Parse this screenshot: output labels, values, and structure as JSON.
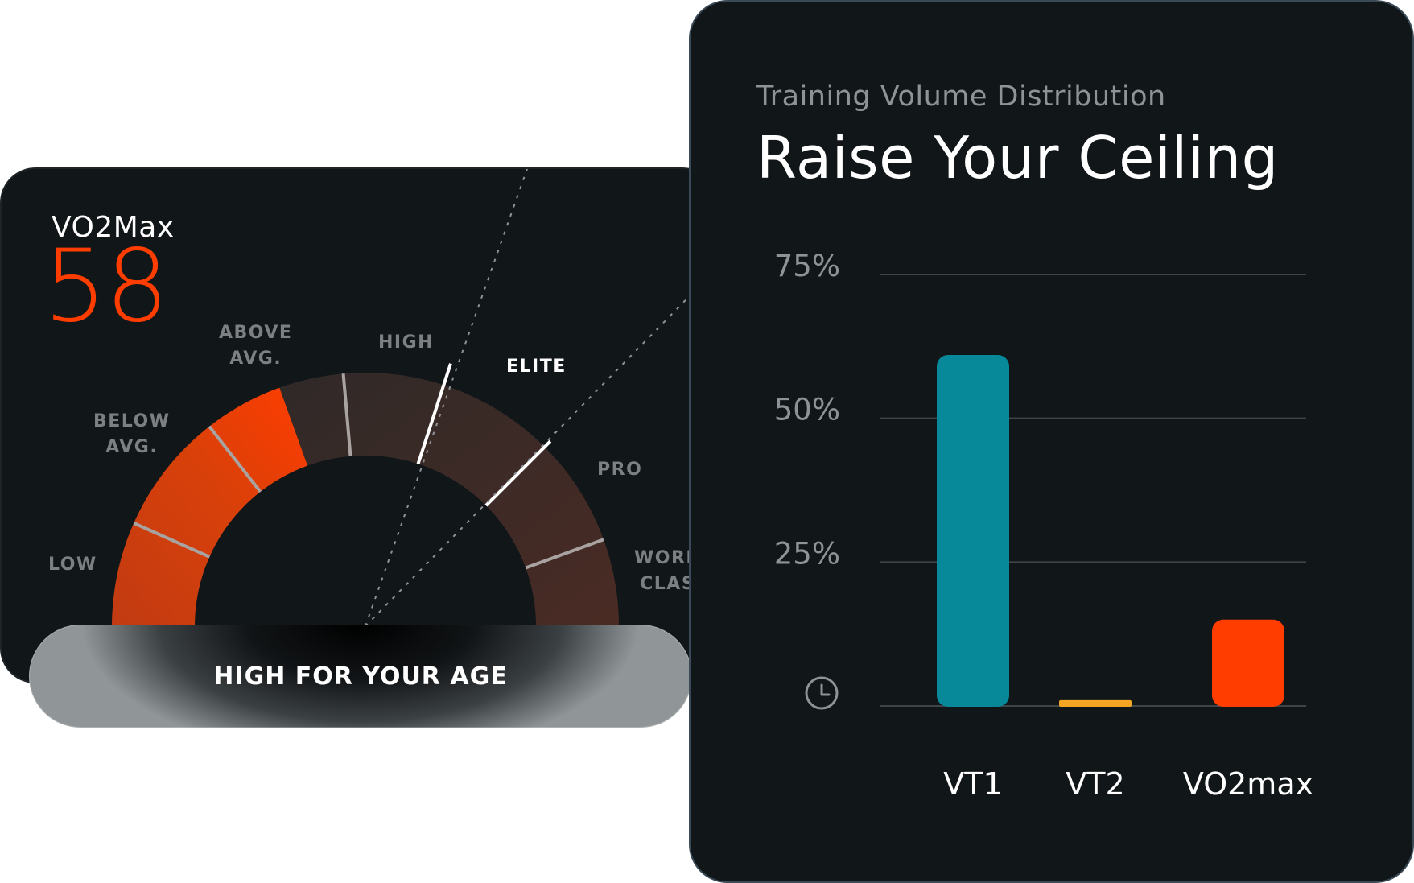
{
  "gauge": {
    "label": "VO2Max",
    "value": "58",
    "zones": [
      {
        "key": "low",
        "lines": [
          "LOW"
        ]
      },
      {
        "key": "below",
        "lines": [
          "BELOW",
          "AVG."
        ]
      },
      {
        "key": "above",
        "lines": [
          "ABOVE",
          "AVG."
        ]
      },
      {
        "key": "high",
        "lines": [
          "HIGH"
        ]
      },
      {
        "key": "elite",
        "lines": [
          "ELITE"
        ]
      },
      {
        "key": "pro",
        "lines": [
          "PRO"
        ]
      },
      {
        "key": "world",
        "lines": [
          "WORLD",
          "CLASS"
        ]
      }
    ],
    "active_zone": "ELITE",
    "level_fraction": 0.39,
    "status": "HIGH FOR YOUR AGE",
    "colors": {
      "fill": "#ff3d00",
      "track": "#3a2a27"
    }
  },
  "chart_panel": {
    "subtitle": "Training Volume Distribution",
    "title": "Raise Your Ceiling",
    "icon": "clock-icon"
  },
  "chart_data": {
    "type": "bar",
    "categories": [
      "VT1",
      "VT2",
      "VO2max"
    ],
    "values": [
      61,
      1,
      15
    ],
    "colors": [
      "#07899a",
      "#f5a524",
      "#ff3d00"
    ],
    "ytick_labels": [
      "25%",
      "50%",
      "75%"
    ],
    "yticks": [
      25,
      50,
      75
    ],
    "ylim": [
      0,
      75
    ],
    "grid": true
  }
}
